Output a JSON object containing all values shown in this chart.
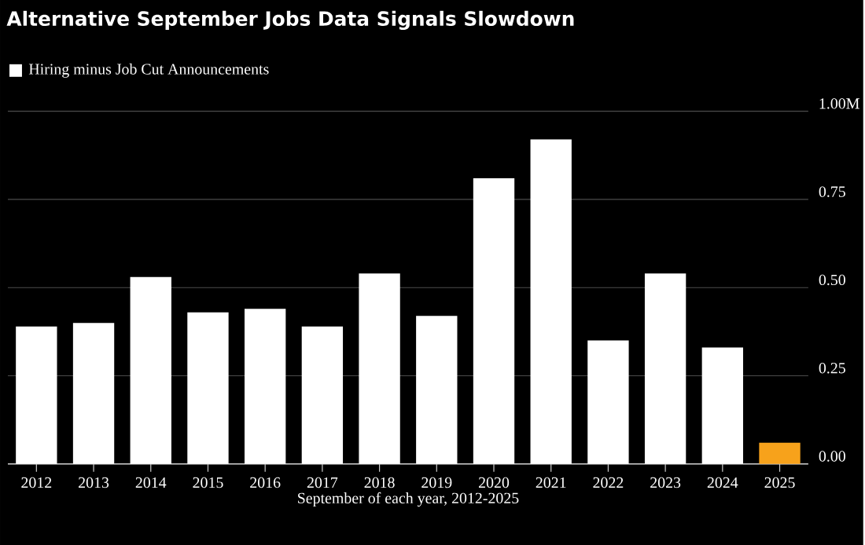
{
  "chart_data": {
    "type": "bar",
    "title": "Alternative September Jobs Data Signals Slowdown",
    "xlabel": "September of each year, 2012-2025",
    "categories": [
      "2012",
      "2013",
      "2014",
      "2015",
      "2016",
      "2017",
      "2018",
      "2019",
      "2020",
      "2021",
      "2022",
      "2023",
      "2024",
      "2025"
    ],
    "series": [
      {
        "name": "Hiring minus Job Cut Announcements",
        "values": [
          0.39,
          0.4,
          0.53,
          0.43,
          0.44,
          0.39,
          0.54,
          0.42,
          0.81,
          0.92,
          0.35,
          0.54,
          0.33,
          0.06
        ],
        "colors": [
          "#ffffff",
          "#ffffff",
          "#ffffff",
          "#ffffff",
          "#ffffff",
          "#ffffff",
          "#ffffff",
          "#ffffff",
          "#ffffff",
          "#ffffff",
          "#ffffff",
          "#ffffff",
          "#ffffff",
          "#f7a21b"
        ]
      }
    ],
    "ylim": [
      0,
      1.0
    ],
    "yticks": [
      {
        "value": 0,
        "label": "0.00"
      },
      {
        "value": 0.25,
        "label": "0.25"
      },
      {
        "value": 0.5,
        "label": "0.50"
      },
      {
        "value": 0.75,
        "label": "0.75"
      },
      {
        "value": 1.0,
        "label": "1.00M"
      }
    ],
    "grid": "y",
    "legend": "top left"
  }
}
